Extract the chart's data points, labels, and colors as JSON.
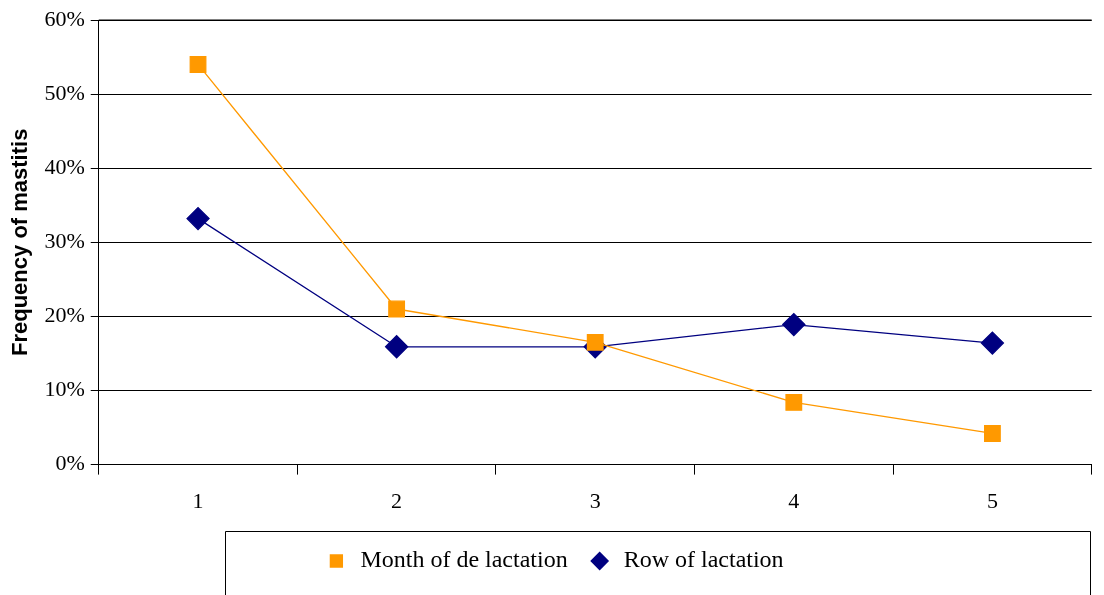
{
  "chart_data": {
    "type": "line",
    "ylabel": "Frequency of mastitis",
    "categories": [
      "1",
      "2",
      "3",
      "4",
      "5"
    ],
    "series": [
      {
        "name": "Month of de lactation",
        "color": "#ff9900",
        "marker": "square",
        "values": [
          54,
          21,
          16.5,
          8.4,
          4.2
        ]
      },
      {
        "name": "Row of lactation",
        "color": "#000080",
        "marker": "diamond",
        "values": [
          33.2,
          15.9,
          15.9,
          18.9,
          16.4
        ]
      }
    ],
    "ylim": [
      0,
      60
    ],
    "yticks": [
      {
        "value": 0,
        "label": "0%"
      },
      {
        "value": 10,
        "label": "10%"
      },
      {
        "value": 20,
        "label": "20%"
      },
      {
        "value": 30,
        "label": "30%"
      },
      {
        "value": 40,
        "label": "40%"
      },
      {
        "value": 50,
        "label": "50%"
      },
      {
        "value": 60,
        "label": "60%"
      }
    ],
    "grid": "y",
    "legend": "bottom"
  }
}
